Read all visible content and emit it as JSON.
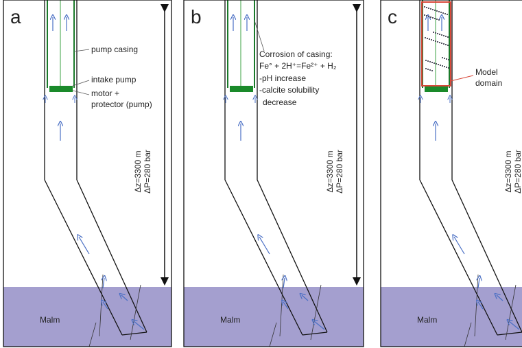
{
  "panels": [
    {
      "label": "a",
      "malm": "Malm",
      "depth": "Δz=3300 m",
      "pressure": "ΔP=280 bar",
      "notes": [
        "pump casing",
        "intake pump",
        "motor +",
        "protector (pump)"
      ]
    },
    {
      "label": "b",
      "malm": "Malm",
      "depth": "Δz=3300 m",
      "pressure": "ΔP=280 bar",
      "notes": [
        "Corrosion of casing:",
        "Fe° + 2H⁺=Fe²⁺ + H₂",
        "-pH increase",
        "-calcite solubility",
        "decrease"
      ]
    },
    {
      "label": "c",
      "malm": "Malm",
      "depth": "Δz=3300 m",
      "pressure": "ΔP=280 bar",
      "notes": [
        "Model",
        "domain"
      ]
    }
  ]
}
